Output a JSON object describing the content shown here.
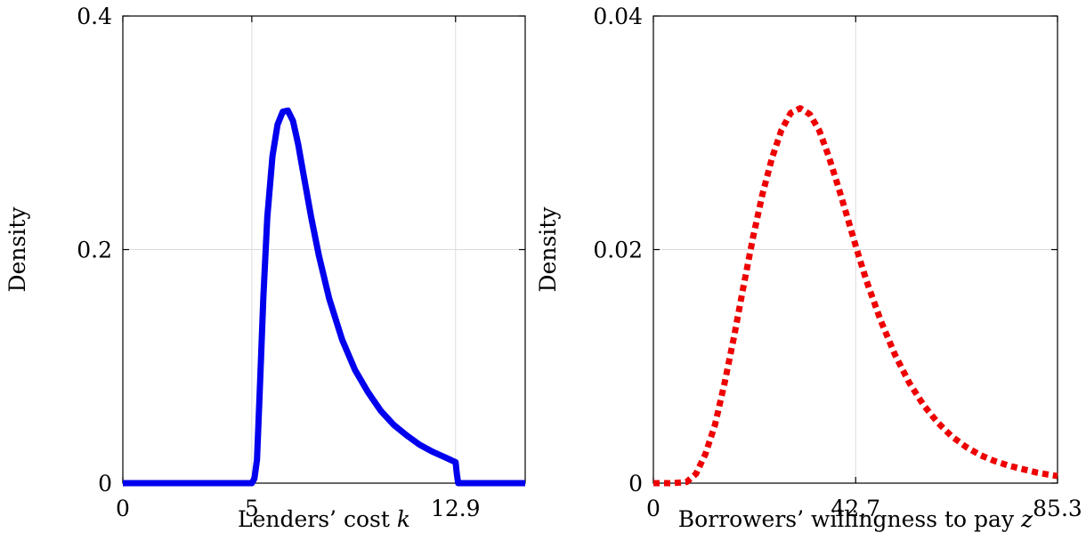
{
  "chart_data": [
    {
      "type": "line",
      "xlabel": "Lenders’ cost",
      "xlabel_var": "k",
      "ylabel": "Density",
      "xlim": [
        0,
        15.6
      ],
      "ylim": [
        0,
        0.4
      ],
      "xticks": [
        0,
        5,
        12.9
      ],
      "xtick_labels": [
        "0",
        "5",
        "12.9"
      ],
      "yticks": [
        0,
        0.2,
        0.4
      ],
      "ytick_labels": [
        "0",
        "0.2",
        "0.4"
      ],
      "grid": true,
      "line_style": "solid",
      "color": "#0000ee",
      "series": [
        {
          "x": [
            0,
            5.0,
            5.1,
            5.2,
            5.3,
            5.45,
            5.6,
            5.8,
            6.0,
            6.2,
            6.4,
            6.6,
            6.8,
            7.0,
            7.3,
            7.6,
            8.0,
            8.5,
            9.0,
            9.5,
            10.0,
            10.5,
            11.0,
            11.5,
            12.0,
            12.5,
            12.9,
            12.95,
            13.0,
            15.6
          ],
          "y": [
            0,
            0,
            0.004,
            0.02,
            0.075,
            0.16,
            0.228,
            0.28,
            0.307,
            0.318,
            0.319,
            0.31,
            0.29,
            0.265,
            0.228,
            0.195,
            0.158,
            0.123,
            0.097,
            0.078,
            0.062,
            0.05,
            0.041,
            0.033,
            0.027,
            0.022,
            0.018,
            0.008,
            0,
            0
          ]
        }
      ]
    },
    {
      "type": "line",
      "xlabel": "Borrowers’ willingness to pay",
      "xlabel_var": "z",
      "ylabel": "Density",
      "xlim": [
        0,
        85.3
      ],
      "ylim": [
        0,
        0.04
      ],
      "xticks": [
        0,
        42.7,
        85.3
      ],
      "xtick_labels": [
        "0",
        "42.7",
        "85.3"
      ],
      "yticks": [
        0,
        0.02,
        0.04
      ],
      "ytick_labels": [
        "0",
        "0.02",
        "0.04"
      ],
      "grid": true,
      "line_style": "dotted",
      "color": "#ee0000",
      "series": [
        {
          "x": [
            0,
            4,
            7,
            9,
            11,
            13,
            15,
            17,
            19,
            21,
            23,
            25,
            27,
            29,
            31,
            33,
            35,
            37,
            39,
            41,
            43,
            45,
            48,
            51,
            54,
            57,
            60,
            63,
            66,
            69,
            72,
            75,
            78,
            81,
            85.3
          ],
          "y": [
            0,
            0,
            0.0001,
            0.0008,
            0.0025,
            0.005,
            0.0085,
            0.0125,
            0.0168,
            0.021,
            0.0247,
            0.0278,
            0.0302,
            0.0317,
            0.0321,
            0.0316,
            0.0302,
            0.028,
            0.0254,
            0.0227,
            0.0199,
            0.0173,
            0.0139,
            0.011,
            0.0086,
            0.0067,
            0.0052,
            0.004,
            0.0031,
            0.0024,
            0.0019,
            0.0015,
            0.0012,
            0.0009,
            0.0006
          ]
        }
      ]
    }
  ]
}
